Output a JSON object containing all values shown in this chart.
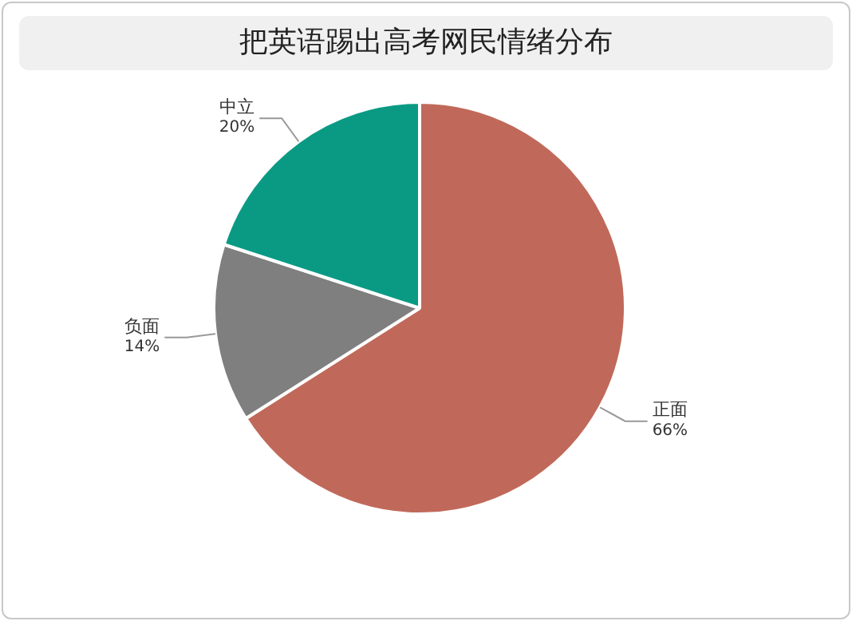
{
  "chart_data": {
    "type": "pie",
    "title": "把英语踢出高考网民情绪分布",
    "categories": [
      "正面",
      "负面",
      "中立"
    ],
    "values": [
      66,
      14,
      20
    ],
    "colors": [
      "#c0695a",
      "#7f7f7f",
      "#0a9a84"
    ],
    "value_labels": [
      "66%",
      "14%",
      "20%"
    ],
    "legend": false
  }
}
